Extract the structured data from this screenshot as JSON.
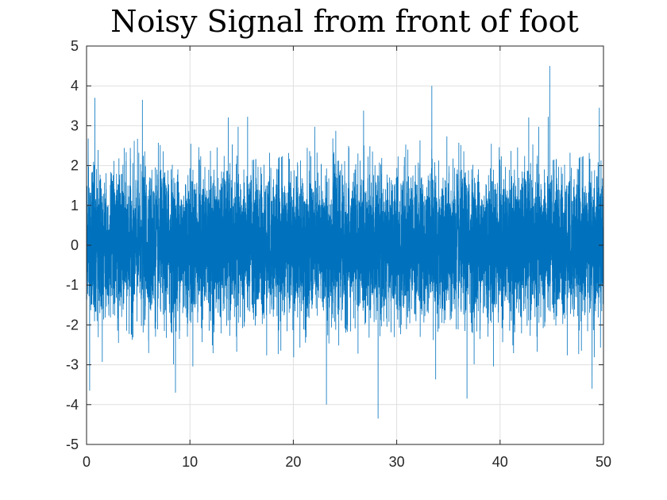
{
  "chart_data": {
    "type": "line",
    "title": "Noisy Signal from front of foot",
    "xlabel": "",
    "ylabel": "",
    "xlim": [
      0,
      50
    ],
    "ylim": [
      -5,
      5
    ],
    "x_ticks": [
      "0",
      "10",
      "20",
      "30",
      "40",
      "50"
    ],
    "y_ticks": [
      "5",
      "4",
      "3",
      "2",
      "1",
      "0",
      "-1",
      "-2",
      "-3",
      "-4",
      "-5"
    ],
    "grid": true,
    "series": [
      {
        "color": "#0072BD",
        "description_stats": {
          "x_range": [
            0,
            50
          ],
          "mean": 0.0,
          "approx_std": 0.9,
          "max_value": 4.5,
          "max_at_x": 44.8,
          "min_value": -4.35,
          "min_at_x": 28.2
        },
        "notable_peaks": [
          {
            "x": 0.8,
            "y": 3.7
          },
          {
            "x": 5.4,
            "y": 3.65
          },
          {
            "x": 33.4,
            "y": 4.0
          },
          {
            "x": 44.8,
            "y": 4.5
          },
          {
            "x": 49.6,
            "y": 3.45
          }
        ],
        "notable_troughs": [
          {
            "x": 0.3,
            "y": -3.65
          },
          {
            "x": 8.6,
            "y": -3.7
          },
          {
            "x": 23.2,
            "y": -4.0
          },
          {
            "x": 28.2,
            "y": -4.35
          },
          {
            "x": 36.8,
            "y": -3.85
          },
          {
            "x": 48.9,
            "y": -3.6
          }
        ]
      }
    ]
  }
}
